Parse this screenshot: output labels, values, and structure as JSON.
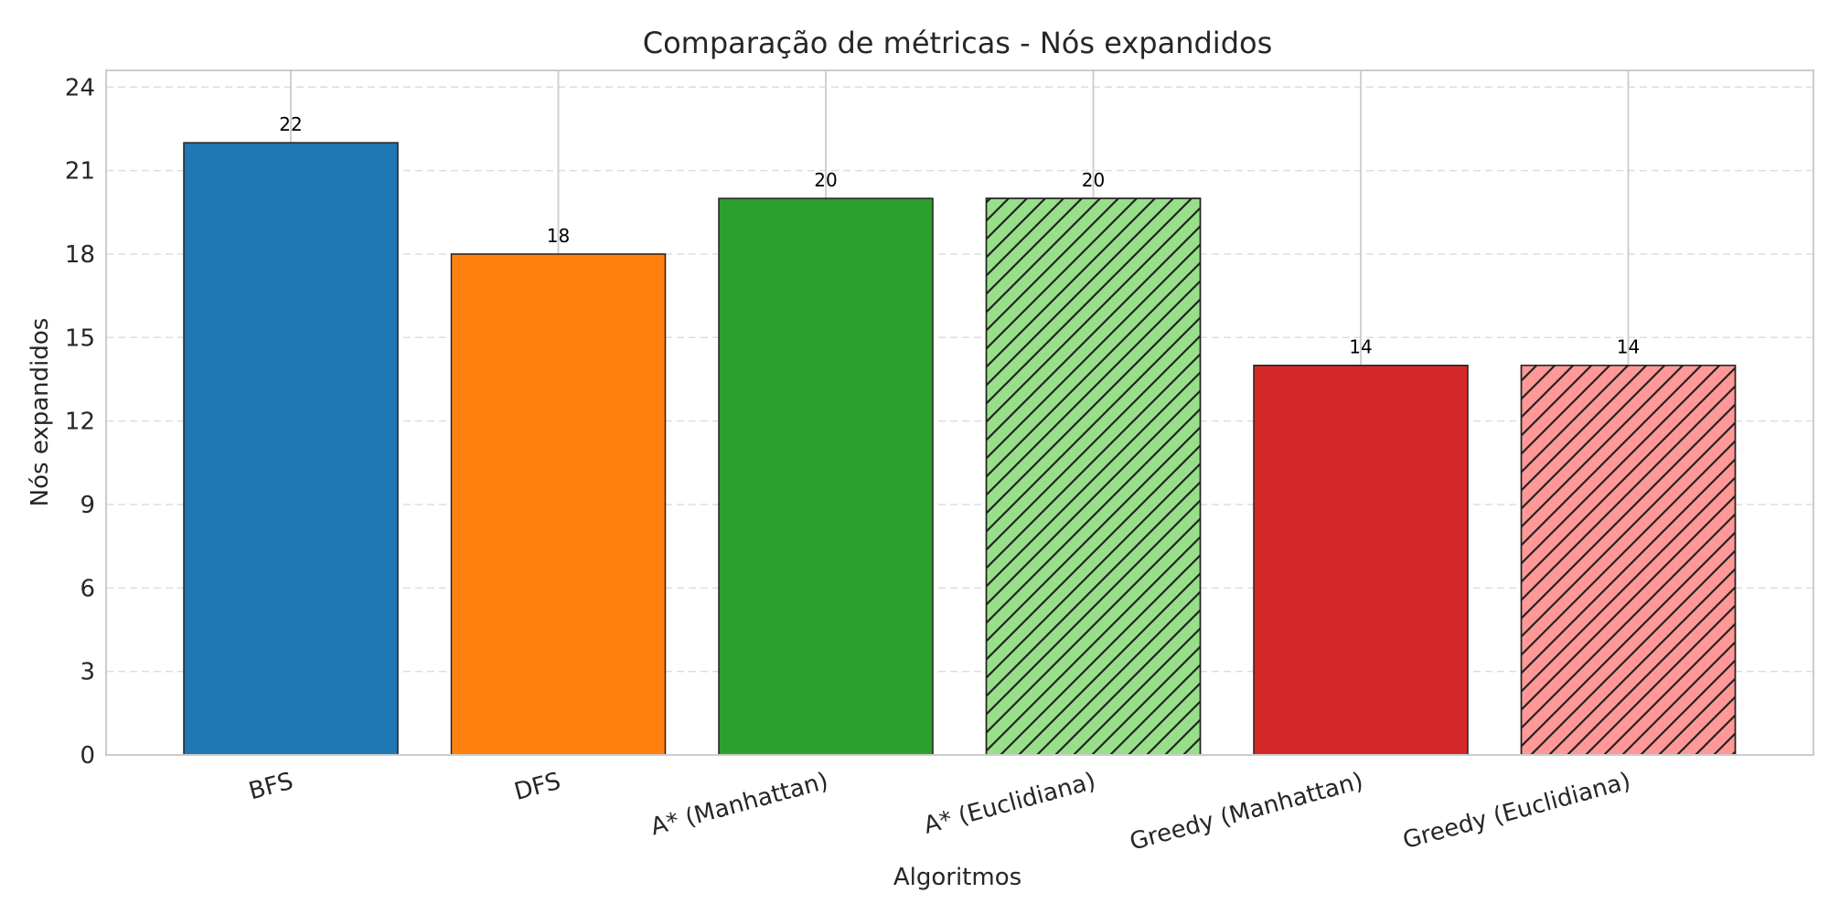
{
  "chart_data": {
    "type": "bar",
    "title": "Comparação de métricas - Nós expandidos",
    "xlabel": "Algoritmos",
    "ylabel": "Nós expandidos",
    "categories": [
      "BFS",
      "DFS",
      "A* (Manhattan)",
      "A* (Euclidiana)",
      "Greedy (Manhattan)",
      "Greedy (Euclidiana)"
    ],
    "values": [
      22,
      18,
      20,
      20,
      14,
      14
    ],
    "data_labels": [
      "22",
      "18",
      "20",
      "20",
      "14",
      "14"
    ],
    "colors": [
      "#1f77b4",
      "#ff7f0e",
      "#2ca02c",
      "#98df8a",
      "#d62728",
      "#ff9896"
    ],
    "hatched": [
      false,
      false,
      false,
      true,
      false,
      true
    ],
    "ylim": [
      0,
      24.6
    ],
    "yticks": [
      0,
      3,
      6,
      9,
      12,
      15,
      18,
      21,
      24
    ],
    "ytick_labels": [
      "0",
      "3",
      "6",
      "9",
      "12",
      "15",
      "18",
      "21",
      "24"
    ],
    "grid": true,
    "legend": "none"
  }
}
